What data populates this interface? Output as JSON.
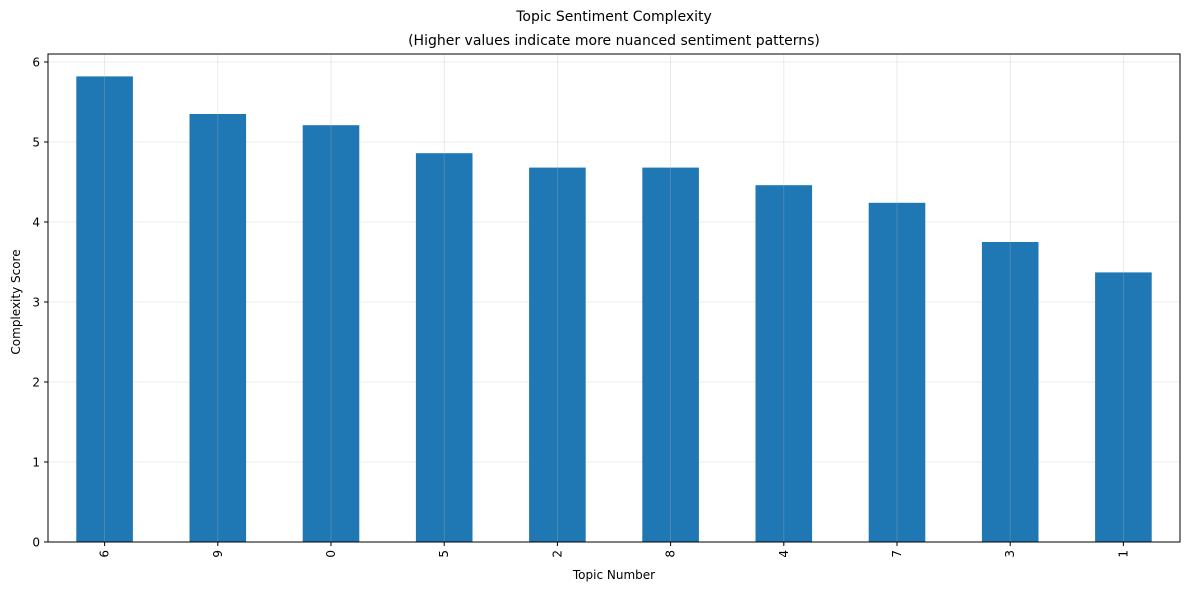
{
  "chart_data": {
    "type": "bar",
    "title": "Topic Sentiment Complexity",
    "subtitle": "(Higher values indicate more nuanced sentiment patterns)",
    "xlabel": "Topic Number",
    "ylabel": "Complexity Score",
    "categories": [
      "6",
      "9",
      "0",
      "5",
      "2",
      "8",
      "4",
      "7",
      "3",
      "1"
    ],
    "values": [
      5.82,
      5.35,
      5.21,
      4.86,
      4.68,
      4.68,
      4.46,
      4.24,
      3.75,
      3.37
    ],
    "ylim": [
      0,
      6.1
    ],
    "yticks": [
      0,
      1,
      2,
      3,
      4,
      5,
      6
    ],
    "grid": true,
    "bar_color": "#1f77b4",
    "grid_color": "#e6e6e6"
  }
}
